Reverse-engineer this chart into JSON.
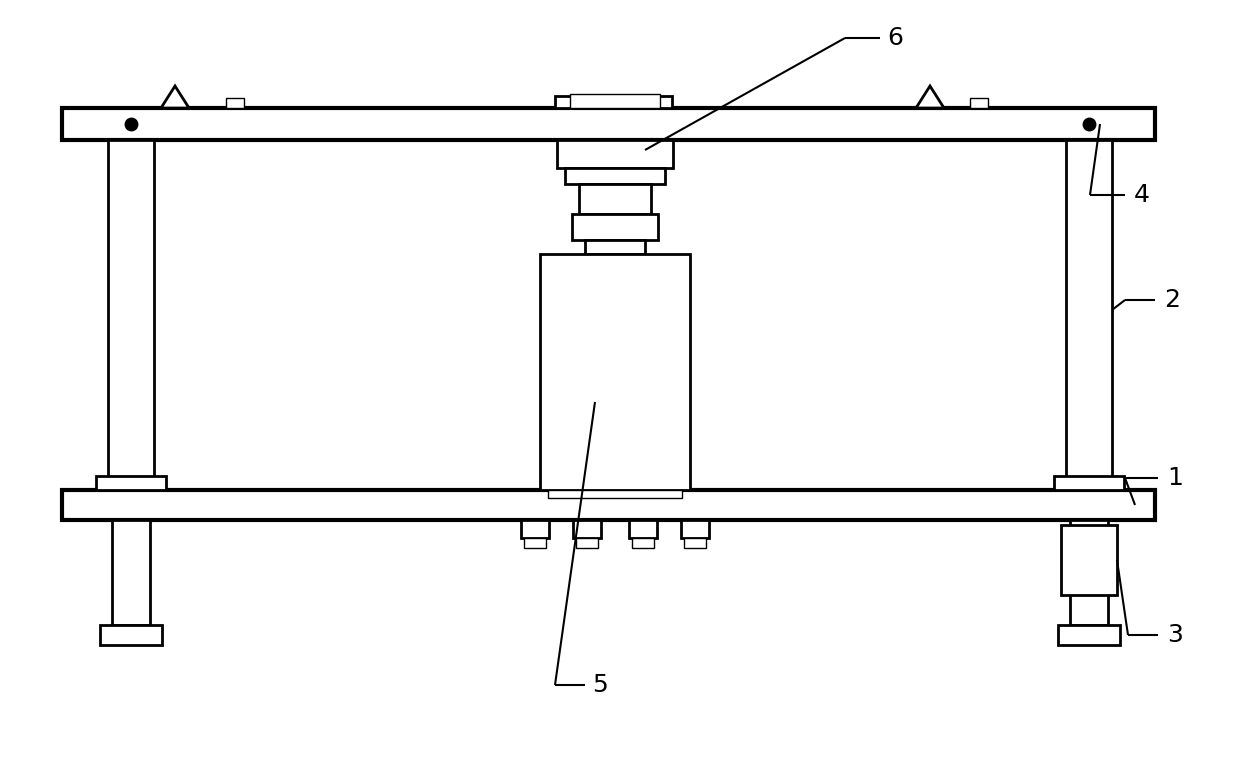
{
  "background_color": "#ffffff",
  "line_color": "#000000",
  "lw": 2.0,
  "tlw": 3.0,
  "slw": 1.0,
  "label_fontsize": 18,
  "fig_w": 12.39,
  "fig_h": 7.79,
  "dpi": 100
}
